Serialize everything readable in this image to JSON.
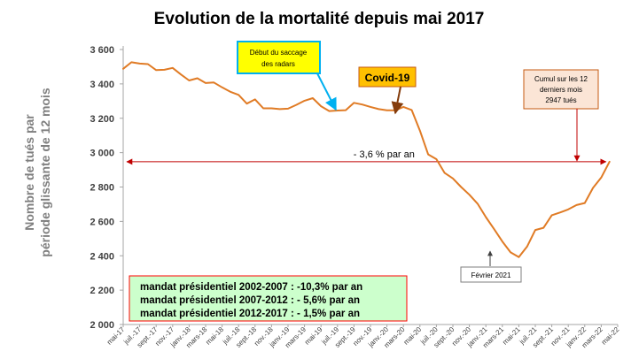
{
  "chart_data": {
    "type": "line",
    "title": "Evolution de la mortalité depuis mai 2017",
    "ylabel": [
      "Nombre de tués par",
      "période  glissante de 12 mois"
    ],
    "xlabel": "",
    "ylim": [
      2000,
      3600
    ],
    "y_ticks": [
      2000,
      2200,
      2400,
      2600,
      2800,
      3000,
      3200,
      3400,
      3600
    ],
    "y_tick_labels": [
      "2 000",
      "2 200",
      "2 400",
      "2 600",
      "2 800",
      "3 000",
      "3 200",
      "3 400",
      "3 600"
    ],
    "grid": false,
    "x_tick_labels": [
      "mai-17",
      "juil.-17",
      "sept.-17",
      "nov.-17",
      "janv.-18",
      "mars-18",
      "mai-18",
      "juil.-18",
      "sept.-18",
      "nov.-18",
      "janv.-19",
      "mars-19",
      "mai-19",
      "juil.-19",
      "sept.-19",
      "nov.-19",
      "janv.-20",
      "mars-20",
      "mai-20",
      "juil.-20",
      "sept.-20",
      "nov.-20",
      "janv.-21",
      "mars-21",
      "mai-21",
      "juil.-21",
      "sept.-21",
      "nov.-21",
      "janv.-22",
      "mars-22",
      "mai-22"
    ],
    "series": [
      {
        "name": "",
        "color": "#e07b25",
        "start_month": "mai-17",
        "values": [
          3488,
          3526,
          3518,
          3515,
          3480,
          3482,
          3493,
          3455,
          3420,
          3433,
          3405,
          3408,
          3380,
          3354,
          3336,
          3285,
          3310,
          3258,
          3258,
          3253,
          3256,
          3278,
          3302,
          3317,
          3270,
          3242,
          3245,
          3247,
          3290,
          3280,
          3266,
          3253,
          3246,
          3246,
          3266,
          3248,
          3128,
          2990,
          2962,
          2882,
          2850,
          2800,
          2755,
          2703,
          2625,
          2555,
          2483,
          2420,
          2392,
          2453,
          2550,
          2563,
          2636,
          2652,
          2670,
          2695,
          2707,
          2795,
          2855,
          2947
        ]
      }
    ],
    "trend": {
      "from": "mai-17",
      "to": "mars-22",
      "value": 2947,
      "label": "- 3,6 % par an"
    },
    "annotations": {
      "radars": {
        "text": [
          "Début du saccage",
          "des radars"
        ],
        "bg": "#ffff00",
        "border": "#00b0f0",
        "arrow_color": "#00b0f0",
        "target": "juil.-19"
      },
      "covid": {
        "text": "Covid-19",
        "bg": "#ffc000",
        "border": "#c55a11",
        "arrow_color": "#843c0c",
        "target": "mars-20"
      },
      "cumul": {
        "text": [
          "Cumul sur les 12",
          "derniers mois",
          "2947 tués"
        ],
        "bg": "#fbe5d6",
        "border": "#c55a11",
        "arrow_color": "#c00000",
        "target": "mars-22"
      },
      "fevrier": {
        "text": "Février 2021",
        "border": "#7f7f7f",
        "target": "févr.-21"
      }
    },
    "mandats": {
      "lines": [
        "mandat présidentiel 2002-2007 : -10,3% par an",
        "mandat présidentiel 2007-2012 : - 5,6% par an",
        "mandat présidentiel 2012-2017 : - 1,5% par an"
      ],
      "bg": "#ccffcc",
      "border": "#ff0000"
    },
    "trend_color": "#c00000",
    "axis_color": "#a6a6a6"
  }
}
